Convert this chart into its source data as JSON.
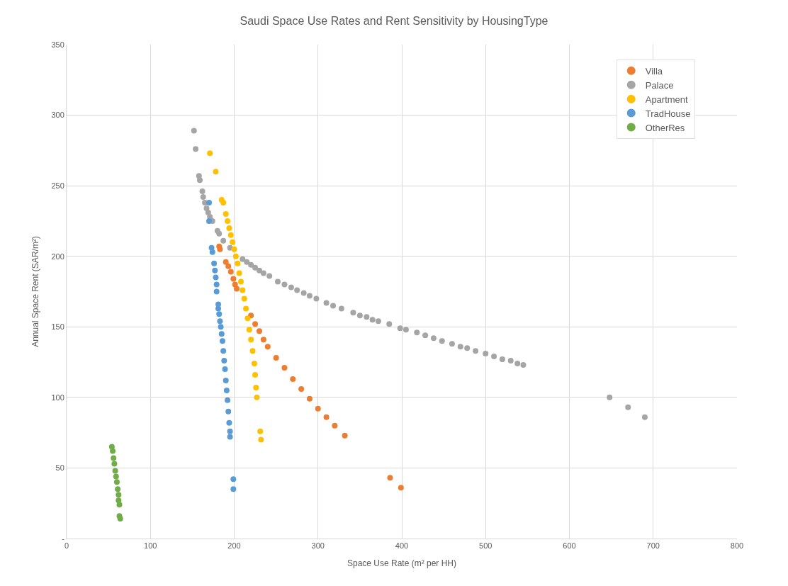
{
  "chart_data": {
    "type": "scatter",
    "title": "Saudi Space Use Rates and Rent Sensitivity by HousingType",
    "xlabel": "Space Use Rate (m² per HH)",
    "ylabel": "Annual Space Rent (SAR/m²)",
    "xlim": [
      0,
      800
    ],
    "xticks": [
      0,
      100,
      200,
      300,
      400,
      500,
      600,
      700,
      800
    ],
    "ylim": [
      0,
      350
    ],
    "yticks": [
      {
        "value": 0,
        "label": "-"
      },
      50,
      100,
      150,
      200,
      250,
      300,
      350
    ],
    "grid": true,
    "legend": "top right",
    "marker": "circle",
    "series": [
      {
        "name": "Villa",
        "color": "#ed7d31",
        "x": [
          182,
          183,
          190,
          193,
          196,
          199,
          201,
          203,
          210,
          215,
          220,
          225,
          230,
          235,
          240,
          250,
          260,
          270,
          280,
          290,
          300,
          310,
          320,
          332,
          386,
          399
        ],
        "values": [
          207,
          205,
          196,
          193,
          189,
          184,
          180,
          177,
          null,
          null,
          158,
          152,
          147,
          141,
          136,
          128,
          121,
          113,
          106,
          99,
          92,
          86,
          80,
          73,
          43,
          36
        ]
      },
      {
        "name": "Palace",
        "color": "#a5a5a5",
        "x": [
          152,
          154,
          158,
          159,
          162,
          163,
          165,
          167,
          169,
          171,
          174,
          180,
          182,
          187,
          195,
          200,
          205,
          210,
          215,
          220,
          225,
          230,
          235,
          242,
          252,
          260,
          268,
          275,
          283,
          290,
          298,
          310,
          318,
          328,
          342,
          350,
          358,
          365,
          372,
          385,
          398,
          405,
          418,
          428,
          438,
          448,
          460,
          470,
          478,
          488,
          500,
          510,
          520,
          530,
          538,
          545,
          648,
          670,
          690
        ],
        "values": [
          289,
          276,
          257,
          254,
          246,
          242,
          238,
          234,
          231,
          228,
          225,
          218,
          216,
          211,
          206,
          null,
          null,
          198,
          196,
          194,
          192,
          190,
          188,
          186,
          182,
          180,
          178,
          176,
          174,
          172,
          170,
          167,
          165,
          163,
          160,
          158,
          157,
          155,
          154,
          152,
          149,
          148,
          146,
          144,
          142,
          140,
          138,
          136,
          135,
          133,
          131,
          129,
          127,
          126,
          124,
          123,
          100,
          93,
          86
        ]
      },
      {
        "name": "Apartment",
        "color": "#ffc000",
        "x": [
          171,
          178,
          185,
          187,
          190,
          192,
          194,
          196,
          198,
          200,
          202,
          204,
          206,
          208,
          210,
          212,
          214,
          216,
          218,
          220,
          222,
          224,
          225,
          226,
          227,
          231,
          232
        ],
        "values": [
          273,
          260,
          240,
          238,
          230,
          225,
          220,
          215,
          210,
          205,
          200,
          195,
          188,
          182,
          176,
          170,
          163,
          156,
          148,
          141,
          133,
          124,
          116,
          107,
          100,
          76,
          70
        ]
      },
      {
        "name": "TradHouse",
        "color": "#5b9bd5",
        "x": [
          170,
          170,
          173,
          174,
          176,
          177,
          178,
          179,
          179,
          181,
          181,
          182,
          183,
          184,
          185,
          186,
          187,
          188,
          189,
          190,
          191,
          192,
          193,
          194,
          195,
          195,
          199,
          199
        ],
        "values": [
          238,
          225,
          206,
          203,
          195,
          190,
          185,
          180,
          175,
          166,
          163,
          159,
          154,
          150,
          145,
          140,
          133,
          126,
          120,
          112,
          105,
          98,
          90,
          82,
          76,
          72,
          42,
          35
        ]
      },
      {
        "name": "OtherRes",
        "color": "#70ad47",
        "x": [
          54,
          55,
          56,
          57,
          58,
          59,
          60,
          61,
          62,
          62,
          63,
          63,
          64
        ],
        "values": [
          65,
          62,
          57,
          53,
          48,
          44,
          40,
          35,
          31,
          27,
          24,
          16,
          14
        ]
      }
    ]
  }
}
